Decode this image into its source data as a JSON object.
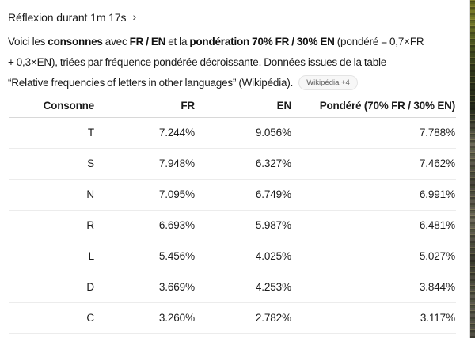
{
  "reasoning": {
    "label": "Réflexion durant 1m 17s",
    "chevron": "›"
  },
  "paragraph": {
    "segments": [
      {
        "text": "Voici les ",
        "bold": false
      },
      {
        "text": "consonnes",
        "bold": true
      },
      {
        "text": " avec ",
        "bold": false
      },
      {
        "text": "FR / EN",
        "bold": true
      },
      {
        "text": " et la ",
        "bold": false
      },
      {
        "text": "pondération 70% FR / 30% EN",
        "bold": true
      },
      {
        "text": " (pondéré = 0,7×FR",
        "bold": false
      },
      {
        "break": true
      },
      {
        "text": "+ 0,3×EN), triées par fréquence pondérée décroissante. Données issues de la table",
        "bold": false
      },
      {
        "break": true
      },
      {
        "text": "“Relative frequencies of letters in other languages” (Wikipédia).",
        "bold": false
      }
    ],
    "citation_badge": "Wikipédia +4"
  },
  "table": {
    "headers": [
      "Consonne",
      "FR",
      "EN",
      "Pondéré (70% FR / 30% EN)"
    ],
    "rows": [
      [
        "T",
        "7.244%",
        "9.056%",
        "7.788%"
      ],
      [
        "S",
        "7.948%",
        "6.327%",
        "7.462%"
      ],
      [
        "N",
        "7.095%",
        "6.749%",
        "6.991%"
      ],
      [
        "R",
        "6.693%",
        "5.987%",
        "6.481%"
      ],
      [
        "L",
        "5.456%",
        "4.025%",
        "5.027%"
      ],
      [
        "D",
        "3.669%",
        "4.253%",
        "3.844%"
      ],
      [
        "C",
        "3.260%",
        "2.782%",
        "3.117%"
      ]
    ]
  },
  "colors": {
    "text": "#1a1a1a",
    "row_separator": "#ececec",
    "header_separator": "#d8d8d8",
    "pill_background": "#f7f7f7",
    "pill_border": "#e4e4e4",
    "pill_text": "#5c5c5c"
  }
}
